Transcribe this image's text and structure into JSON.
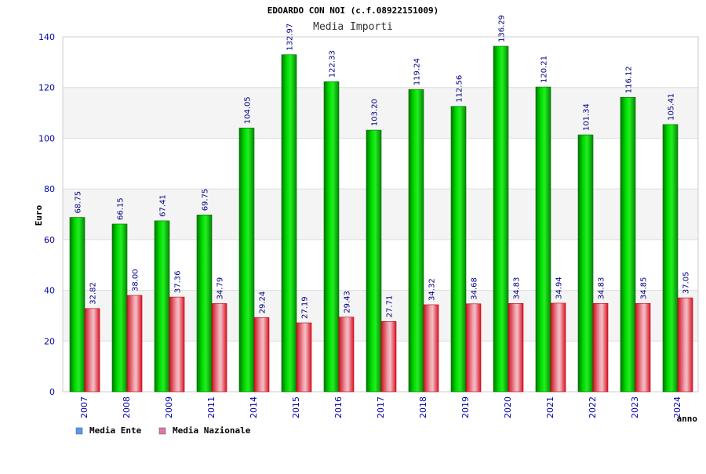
{
  "chart_data": {
    "type": "bar",
    "title": "EDOARDO CON NOI (c.f.08922151009)",
    "subtitle": "Media Importi",
    "xlabel": "anno",
    "ylabel": "Euro",
    "ylim": [
      0,
      140
    ],
    "yticks": [
      0,
      20,
      40,
      60,
      80,
      100,
      120,
      140
    ],
    "grid": "horizontal bands",
    "legend_position": "bottom-left",
    "categories": [
      "2007",
      "2008",
      "2009",
      "2011",
      "2014",
      "2015",
      "2016",
      "2017",
      "2018",
      "2019",
      "2020",
      "2021",
      "2022",
      "2023",
      "2024"
    ],
    "series": [
      {
        "name": "Media Ente",
        "color": "#00bb00",
        "legend_color": "#5599ee",
        "values": [
          68.75,
          66.15,
          67.41,
          69.75,
          104.05,
          132.97,
          122.33,
          103.2,
          119.24,
          112.56,
          136.29,
          120.21,
          101.34,
          116.12,
          105.41
        ],
        "labels": [
          "68.75",
          "66.15",
          "67.41",
          "69.75",
          "104.05",
          "132.97",
          "122.33",
          "103.20",
          "119.24",
          "112.56",
          "136.29",
          "120.21",
          "101.34",
          "116.12",
          "105.41"
        ]
      },
      {
        "name": "Media Nazionale",
        "color": "#ee2233",
        "legend_color": "#dd77aa",
        "values": [
          32.82,
          38.0,
          37.36,
          34.79,
          29.24,
          27.19,
          29.43,
          27.71,
          34.32,
          34.68,
          34.83,
          34.94,
          34.83,
          34.85,
          37.05
        ],
        "labels": [
          "32.82",
          "38.00",
          "37.36",
          "34.79",
          "29.24",
          "27.19",
          "29.43",
          "27.71",
          "34.32",
          "34.68",
          "34.83",
          "34.94",
          "34.83",
          "34.85",
          "37.05"
        ]
      }
    ]
  }
}
